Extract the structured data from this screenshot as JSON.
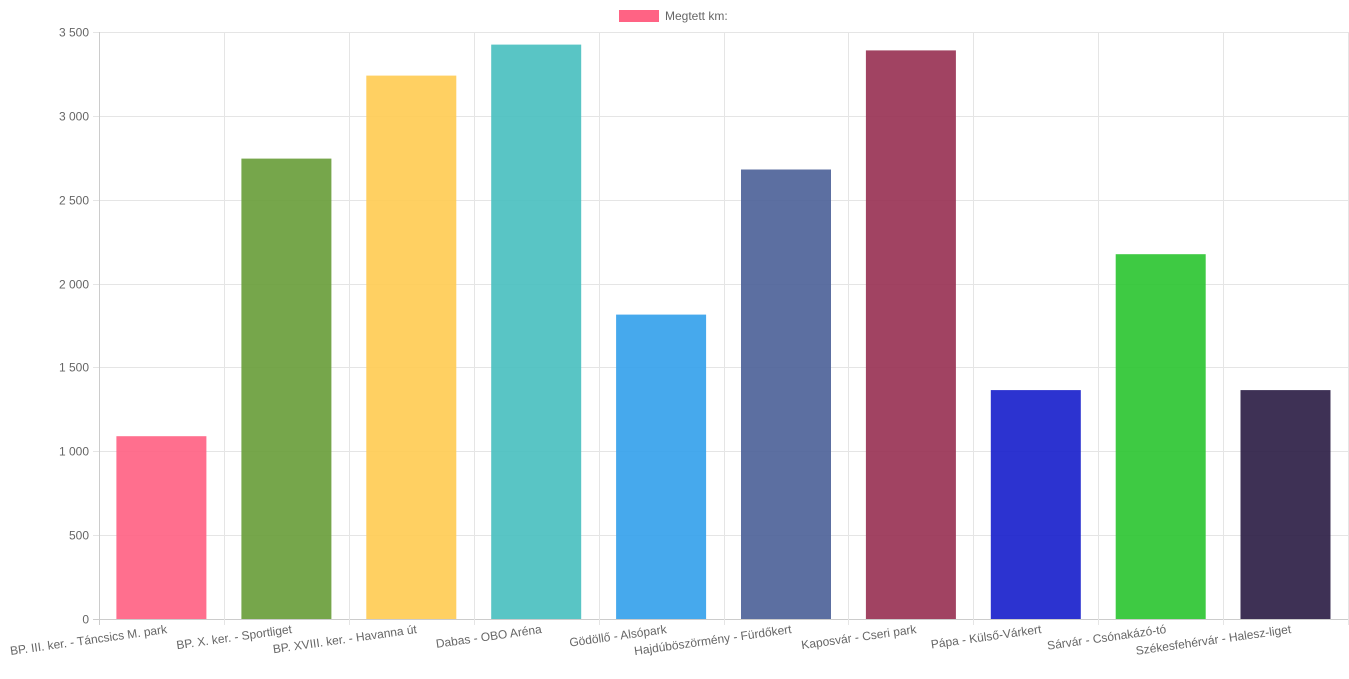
{
  "chart_data": {
    "type": "bar",
    "title": "",
    "xlabel": "",
    "ylabel": "",
    "legend": {
      "position": "top-center",
      "label": "Megtett km:",
      "color": "#ff6384"
    },
    "grid": true,
    "ylim": [
      0,
      3500
    ],
    "yticks": [
      0,
      500,
      1000,
      1500,
      2000,
      2500,
      3000,
      3500
    ],
    "ytick_labels": [
      "0",
      "500",
      "1 000",
      "1 500",
      "2 000",
      "2 500",
      "3 000",
      "3 500"
    ],
    "categories": [
      "BP. III. ker. - Táncsics M. park",
      "BP. X. ker. - Sportliget",
      "BP. XVIII. ker. - Havanna út",
      "Dabas - OBO Aréna",
      "Gödöllő - Alsópark",
      "Hajdúböszörmény - Fürdőkert",
      "Kaposvár - Cseri park",
      "Pápa - Külső-Várkert",
      "Sárvár - Csónakázó-tó",
      "Székesfehérvár - Halesz-liget"
    ],
    "series": [
      {
        "name": "Megtett km:",
        "values": [
          1090,
          2745,
          3240,
          3425,
          1815,
          2680,
          3390,
          1365,
          2175,
          1365
        ],
        "colors": [
          "#ff6384",
          "#6a9e3c",
          "#ffcc55",
          "#4bc0c0",
          "#36a2eb",
          "#4e6399",
          "#993355",
          "#1a22cc",
          "#2ec633",
          "#2e1f47"
        ]
      }
    ]
  }
}
